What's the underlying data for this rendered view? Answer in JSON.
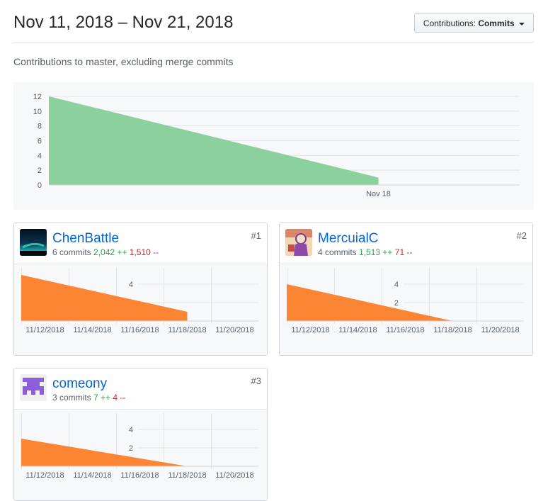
{
  "header": {
    "title": "Nov 11, 2018 – Nov 21, 2018",
    "contributions_label": "Contributions:",
    "contributions_value": "Commits"
  },
  "subtitle": "Contributions to master, excluding merge commits",
  "colors": {
    "main_area": "#8cd09d",
    "contributor_area": "#fb8532",
    "link": "#0366d6",
    "additions": "#28a745",
    "deletions": "#cb2431"
  },
  "chart_data": [
    {
      "type": "area",
      "yticks": [
        0,
        2,
        4,
        6,
        8,
        10,
        12
      ],
      "ylim": [
        0,
        12
      ],
      "xlim": [
        "2018-11-11",
        "2018-11-21"
      ],
      "xticks": [
        {
          "date": "2018-11-18",
          "label": "Nov 18"
        }
      ],
      "x": [
        "2018-11-11",
        "2018-11-18"
      ],
      "y": [
        12,
        1
      ],
      "grid": true
    },
    {
      "type": "area",
      "yticks": [
        2,
        4
      ],
      "ylim": [
        0,
        5
      ],
      "xlim": [
        "2018-11-11",
        "2018-11-21"
      ],
      "xticks": [
        {
          "date": "2018-11-12",
          "label": "11/12/2018"
        },
        {
          "date": "2018-11-14",
          "label": "11/14/2018"
        },
        {
          "date": "2018-11-16",
          "label": "11/16/2018"
        },
        {
          "date": "2018-11-18",
          "label": "11/18/2018"
        },
        {
          "date": "2018-11-20",
          "label": "11/20/2018"
        }
      ],
      "x": [
        "2018-11-11",
        "2018-11-18"
      ],
      "y": [
        5,
        1
      ]
    },
    {
      "type": "area",
      "yticks": [
        2,
        4
      ],
      "ylim": [
        0,
        5
      ],
      "xlim": [
        "2018-11-11",
        "2018-11-21"
      ],
      "xticks": [
        {
          "date": "2018-11-12",
          "label": "11/12/2018"
        },
        {
          "date": "2018-11-14",
          "label": "11/14/2018"
        },
        {
          "date": "2018-11-16",
          "label": "11/16/2018"
        },
        {
          "date": "2018-11-18",
          "label": "11/18/2018"
        },
        {
          "date": "2018-11-20",
          "label": "11/20/2018"
        }
      ],
      "x": [
        "2018-11-11",
        "2018-11-18"
      ],
      "y": [
        4,
        0
      ]
    },
    {
      "type": "area",
      "yticks": [
        2,
        4
      ],
      "ylim": [
        0,
        5
      ],
      "xlim": [
        "2018-11-11",
        "2018-11-21"
      ],
      "xticks": [
        {
          "date": "2018-11-12",
          "label": "11/12/2018"
        },
        {
          "date": "2018-11-14",
          "label": "11/14/2018"
        },
        {
          "date": "2018-11-16",
          "label": "11/16/2018"
        },
        {
          "date": "2018-11-18",
          "label": "11/18/2018"
        },
        {
          "date": "2018-11-20",
          "label": "11/20/2018"
        }
      ],
      "x": [
        "2018-11-11",
        "2018-11-18"
      ],
      "y": [
        3,
        0
      ]
    }
  ],
  "contributors": [
    {
      "name": "ChenBattle",
      "commits": "6 commits",
      "additions": "2,042 ++",
      "deletions": "1,510 --",
      "rank": "#1"
    },
    {
      "name": "MercuialC",
      "commits": "4 commits",
      "additions": "1,513 ++",
      "deletions": "71 --",
      "rank": "#2"
    },
    {
      "name": "comeony",
      "commits": "3 commits",
      "additions": "7 ++",
      "deletions": "4 --",
      "rank": "#3"
    }
  ]
}
